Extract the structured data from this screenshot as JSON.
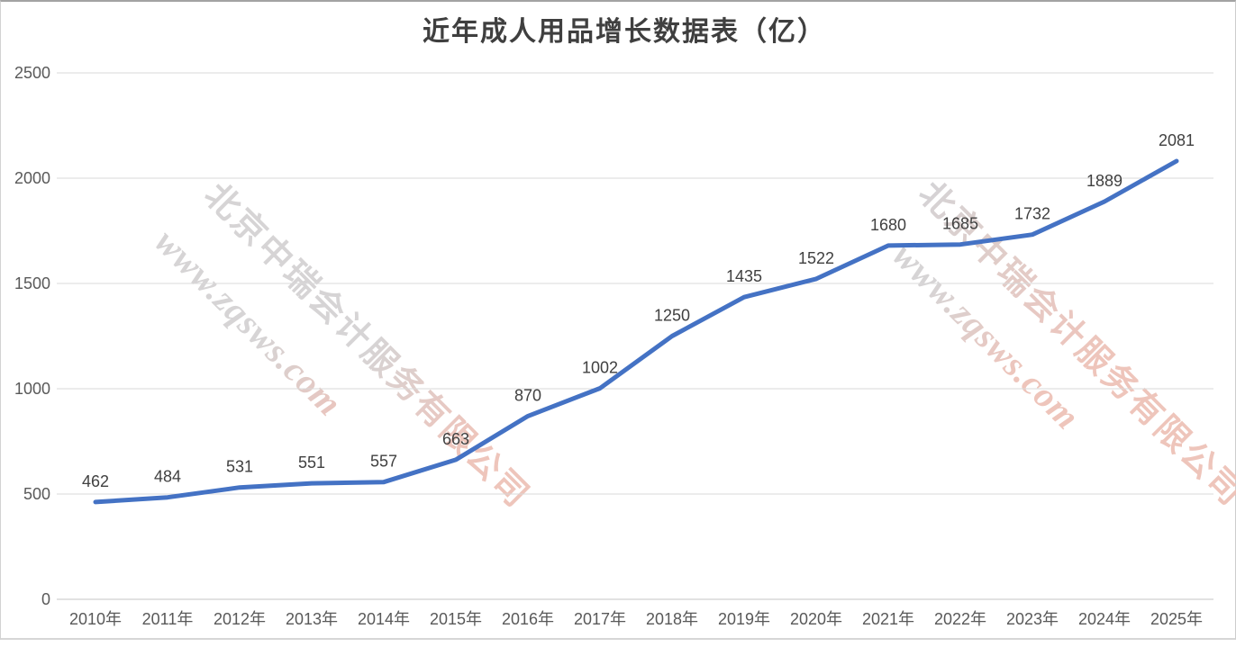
{
  "title": {
    "text": "近年成人用品增长数据表（亿）"
  },
  "watermark": {
    "company": "北京中瑞会计服务有限公司",
    "url": "www.zqsws.com"
  },
  "chart_data": {
    "type": "line",
    "title": "近年成人用品增长数据表（亿）",
    "categories": [
      "2010年",
      "2011年",
      "2012年",
      "2013年",
      "2014年",
      "2015年",
      "2016年",
      "2017年",
      "2018年",
      "2019年",
      "2020年",
      "2021年",
      "2022年",
      "2023年",
      "2024年",
      "2025年"
    ],
    "values": [
      462,
      484,
      531,
      551,
      557,
      663,
      870,
      1002,
      1250,
      1435,
      1522,
      1680,
      1685,
      1732,
      1889,
      2081
    ],
    "data_labels": true,
    "xlabel": "",
    "ylabel": "",
    "ylim": [
      0,
      2500
    ],
    "y_ticks": [
      2500,
      2000,
      1500,
      1000,
      500,
      0
    ],
    "grid": true,
    "legend": "none",
    "colors": {
      "line": "#4472c4",
      "gridline": "#d9d9d9",
      "axis_line": "#c6c6c6",
      "tick_label": "#595959",
      "data_label": "#404040",
      "title": "#3f3f3f",
      "watermark_gray": "#d4d2d3",
      "watermark_pink": "#eec2b8"
    }
  }
}
